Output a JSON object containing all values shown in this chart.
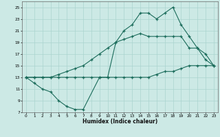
{
  "xlabel": "Humidex (Indice chaleur)",
  "bg_color": "#cce9e5",
  "grid_color": "#aad4cf",
  "line_color": "#1a6b5a",
  "xlim": [
    -0.5,
    23.5
  ],
  "ylim": [
    7,
    26
  ],
  "xticks": [
    0,
    1,
    2,
    3,
    4,
    5,
    6,
    7,
    8,
    9,
    10,
    11,
    12,
    13,
    14,
    15,
    16,
    17,
    18,
    19,
    20,
    21,
    22,
    23
  ],
  "yticks": [
    7,
    9,
    11,
    13,
    15,
    17,
    19,
    21,
    23,
    25
  ],
  "line1_x": [
    0,
    1,
    2,
    3,
    4,
    5,
    6,
    7,
    9,
    10,
    11,
    12,
    13,
    14,
    15,
    16,
    17,
    18,
    19,
    20,
    21,
    22,
    23
  ],
  "line1_y": [
    13,
    12,
    11,
    10.5,
    9,
    8,
    7.5,
    7.5,
    13,
    13,
    19,
    21,
    22,
    24,
    24,
    23,
    24,
    25,
    22,
    20,
    18,
    16,
    15
  ],
  "line2_x": [
    0,
    1,
    2,
    3,
    4,
    5,
    6,
    7,
    8,
    9,
    10,
    11,
    12,
    13,
    14,
    15,
    16,
    17,
    18,
    19,
    20,
    21,
    22,
    23
  ],
  "line2_y": [
    13,
    13,
    13,
    13,
    13.5,
    14,
    14.5,
    15,
    16,
    17,
    18,
    19,
    19.5,
    20,
    20.5,
    20,
    20,
    20,
    20,
    20,
    18,
    18,
    17,
    15
  ],
  "line3_x": [
    0,
    1,
    2,
    3,
    4,
    5,
    6,
    7,
    8,
    9,
    10,
    11,
    12,
    13,
    14,
    15,
    16,
    17,
    18,
    19,
    20,
    21,
    22,
    23
  ],
  "line3_y": [
    13,
    13,
    13,
    13,
    13,
    13,
    13,
    13,
    13,
    13,
    13,
    13,
    13,
    13,
    13,
    13,
    13.5,
    14,
    14,
    14.5,
    15,
    15,
    15,
    15
  ]
}
